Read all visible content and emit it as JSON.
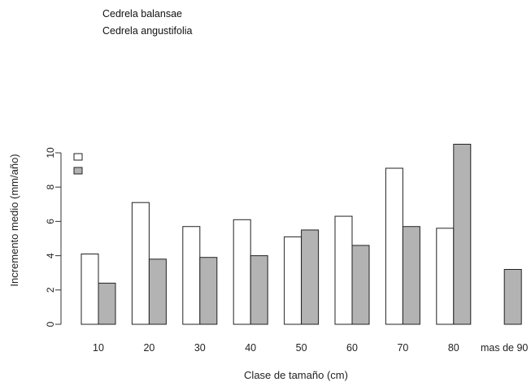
{
  "legend": {
    "items": [
      {
        "label": "Cedrela balansae",
        "fill": "#ffffff"
      },
      {
        "label": "Cedrela angustifolia",
        "fill": "#b3b3b3"
      }
    ]
  },
  "chart_data": {
    "type": "bar",
    "title": "",
    "xlabel": "Clase de tamaño (cm)",
    "ylabel": "Incremento medio (mm/año)",
    "ylim": [
      0,
      10.5
    ],
    "yticks": [
      0,
      2,
      4,
      6,
      8,
      10
    ],
    "categories": [
      "10",
      "20",
      "30",
      "40",
      "50",
      "60",
      "70",
      "80",
      "mas de 90"
    ],
    "series": [
      {
        "name": "Cedrela balansae",
        "color": "#ffffff",
        "values": [
          4.1,
          7.1,
          5.7,
          6.1,
          5.1,
          6.3,
          9.1,
          5.6,
          null
        ]
      },
      {
        "name": "Cedrela angustifolia",
        "color": "#b3b3b3",
        "values": [
          2.4,
          3.8,
          3.9,
          4.0,
          5.5,
          4.6,
          5.7,
          10.5,
          3.2
        ]
      }
    ],
    "grid": false,
    "legend_position": "top-left"
  }
}
